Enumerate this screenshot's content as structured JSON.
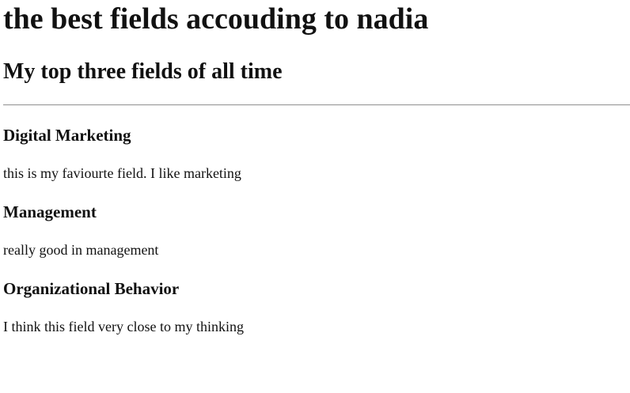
{
  "page": {
    "heading": "the best fields accouding to nadia",
    "subheading": "My top three fields of all time"
  },
  "fields": [
    {
      "title": "Digital Marketing",
      "description": "this is my faviourte field. I like marketing"
    },
    {
      "title": "Management",
      "description": "really good in management"
    },
    {
      "title": "Organizational Behavior",
      "description": "I think this field very close to my thinking"
    }
  ]
}
